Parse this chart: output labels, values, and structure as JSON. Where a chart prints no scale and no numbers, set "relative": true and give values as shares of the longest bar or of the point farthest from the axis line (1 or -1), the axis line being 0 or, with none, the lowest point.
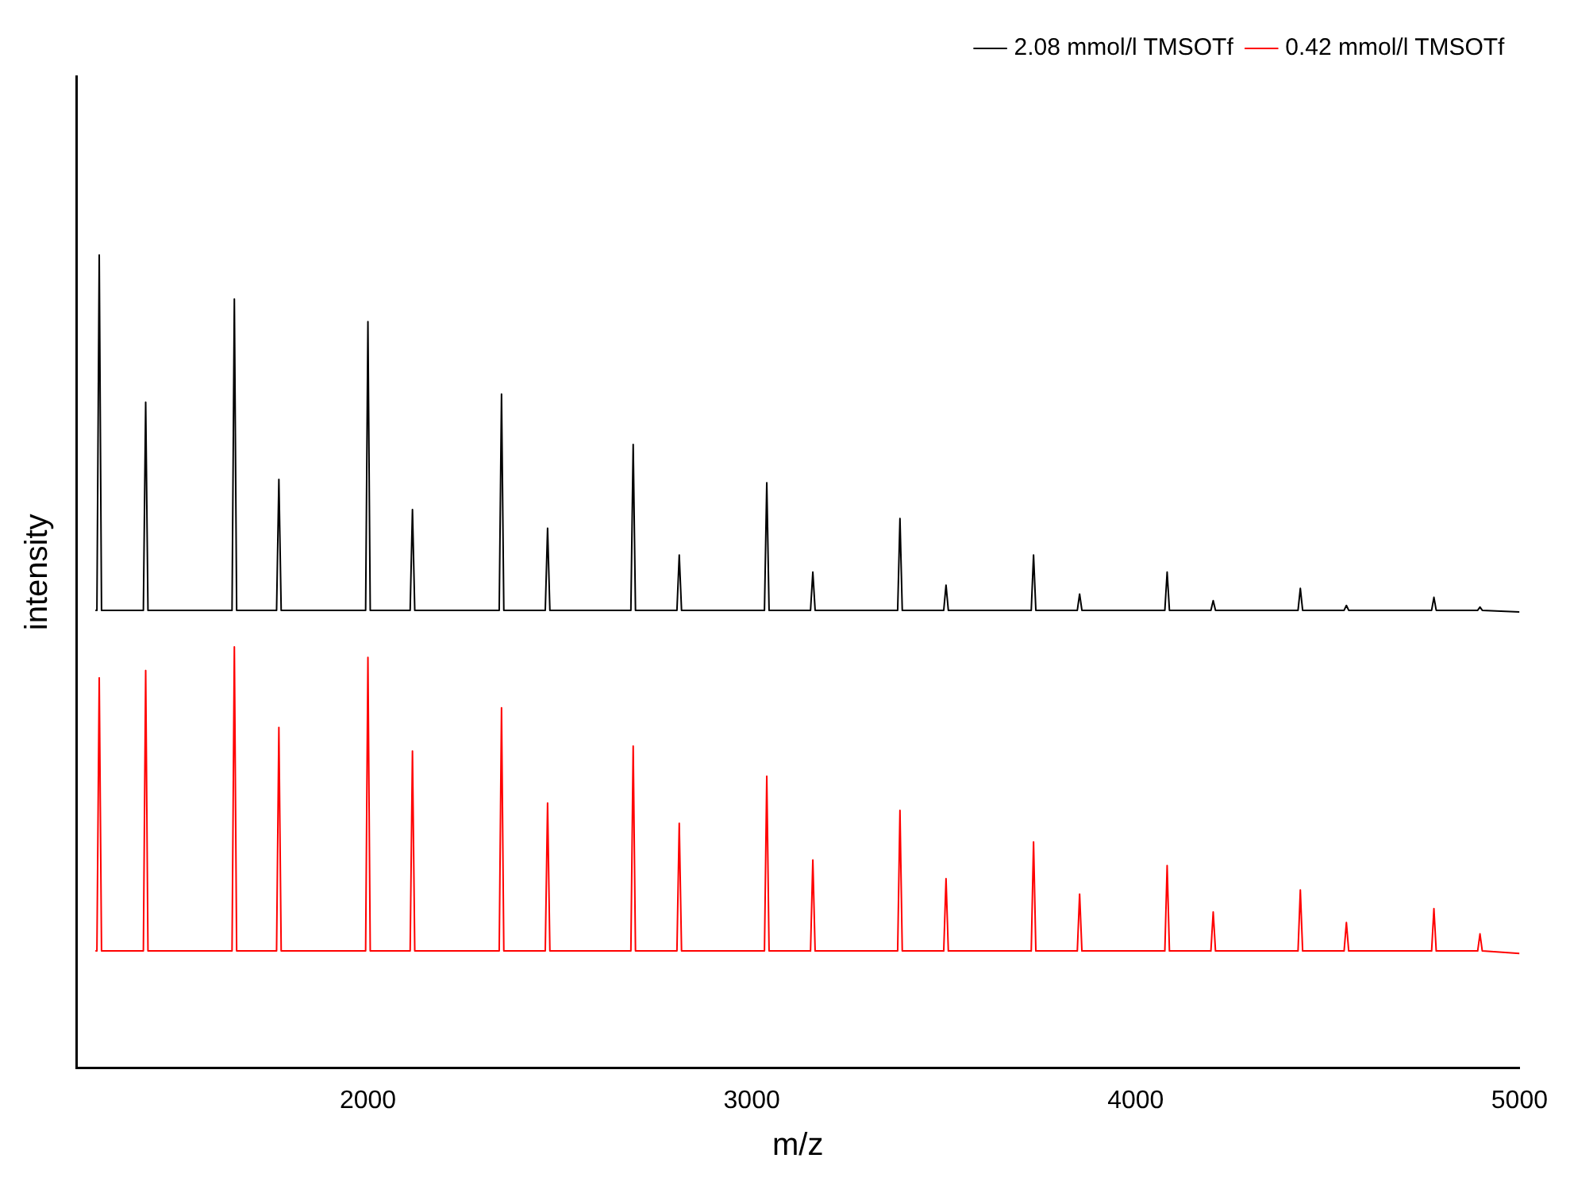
{
  "chart_data": {
    "type": "line",
    "xlabel": "m/z",
    "ylabel": "intensity",
    "relative": true,
    "xlim": [
      1240,
      5000
    ],
    "xticks": [
      2000,
      3000,
      4000,
      5000
    ],
    "grid": false,
    "legend": "top right",
    "marker": "none",
    "line_style": "solid",
    "x": [
      1290,
      1294,
      1300,
      1306,
      1415,
      1421,
      1427,
      1646,
      1652,
      1658,
      1762,
      1768,
      1774,
      1994,
      2000,
      2006,
      2110,
      2116,
      2122,
      2342,
      2348,
      2354,
      2462,
      2468,
      2474,
      2685,
      2691,
      2697,
      2805,
      2811,
      2817,
      3033,
      3039,
      3045,
      3153,
      3159,
      3165,
      3380,
      3386,
      3392,
      3500,
      3506,
      3512,
      3728,
      3734,
      3740,
      3848,
      3854,
      3860,
      4076,
      4082,
      4088,
      4196,
      4202,
      4208,
      4423,
      4429,
      4435,
      4543,
      4549,
      4555,
      4771,
      4777,
      4783,
      4891,
      4897,
      4903,
      5000
    ],
    "series": [
      {
        "name": "2.08 mmol/l TMSOTf",
        "color": "#000000",
        "values": [
          0.563,
          0.563,
          1.0,
          0.563,
          0.563,
          0.819,
          0.563,
          0.563,
          0.946,
          0.563,
          0.563,
          0.724,
          0.563,
          0.563,
          0.918,
          0.563,
          0.563,
          0.687,
          0.563,
          0.563,
          0.829,
          0.563,
          0.563,
          0.664,
          0.563,
          0.563,
          0.767,
          0.563,
          0.563,
          0.631,
          0.563,
          0.563,
          0.72,
          0.563,
          0.563,
          0.61,
          0.563,
          0.563,
          0.676,
          0.563,
          0.563,
          0.594,
          0.563,
          0.563,
          0.631,
          0.563,
          0.563,
          0.583,
          0.563,
          0.563,
          0.61,
          0.563,
          0.563,
          0.575,
          0.563,
          0.563,
          0.59,
          0.563,
          0.563,
          0.569,
          0.563,
          0.563,
          0.579,
          0.563,
          0.563,
          0.567,
          0.563,
          0.561
        ]
      },
      {
        "name": "0.42 mmol/l TMSOTf",
        "color": "#ff0000",
        "values": [
          0.144,
          0.144,
          0.48,
          0.144,
          0.144,
          0.489,
          0.144,
          0.144,
          0.518,
          0.144,
          0.144,
          0.419,
          0.144,
          0.144,
          0.505,
          0.144,
          0.144,
          0.39,
          0.144,
          0.144,
          0.443,
          0.144,
          0.144,
          0.326,
          0.144,
          0.144,
          0.396,
          0.144,
          0.144,
          0.301,
          0.144,
          0.144,
          0.359,
          0.144,
          0.144,
          0.256,
          0.144,
          0.144,
          0.317,
          0.144,
          0.144,
          0.233,
          0.144,
          0.144,
          0.278,
          0.144,
          0.144,
          0.214,
          0.144,
          0.144,
          0.249,
          0.144,
          0.144,
          0.192,
          0.144,
          0.144,
          0.219,
          0.144,
          0.144,
          0.179,
          0.144,
          0.144,
          0.196,
          0.144,
          0.144,
          0.165,
          0.144,
          0.141
        ]
      }
    ]
  }
}
